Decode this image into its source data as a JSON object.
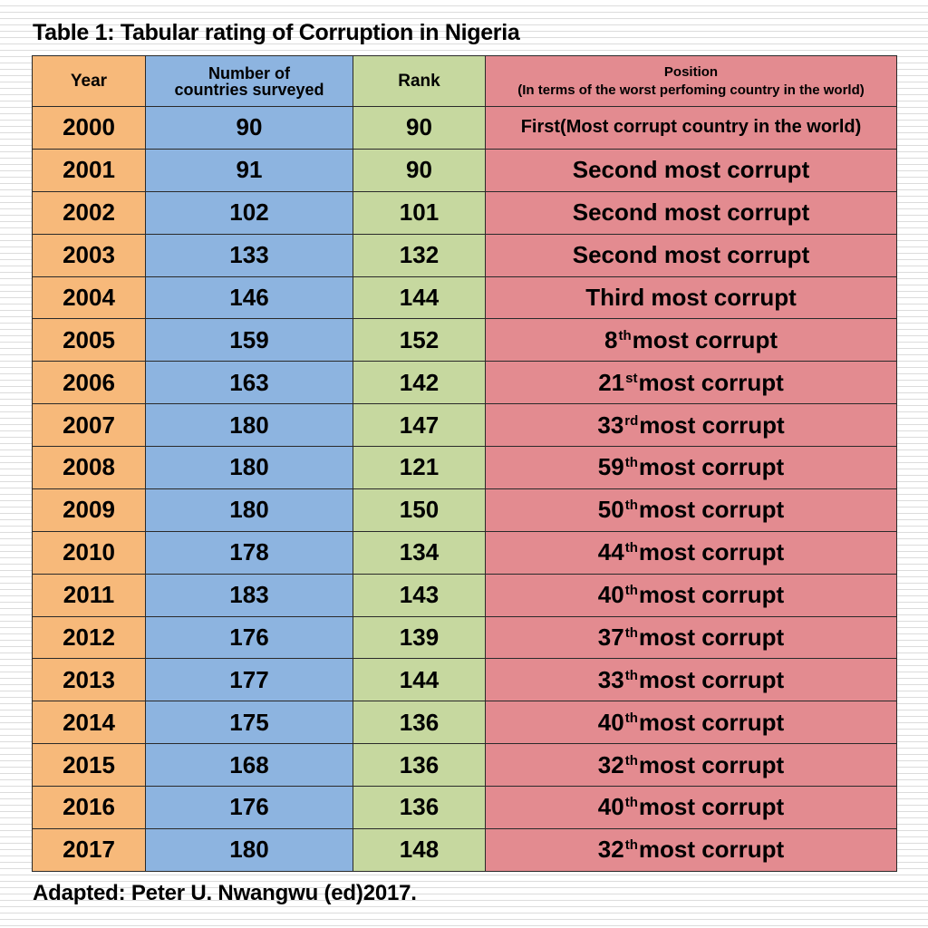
{
  "title": "Table 1: Tabular rating of Corruption in Nigeria",
  "headers": {
    "year": "Year",
    "countries_line1": "Number of",
    "countries_line2": "countries surveyed",
    "rank": "Rank",
    "position_line1": "Position",
    "position_line2": "(In terms of the worst perfoming country in the world)"
  },
  "colors": {
    "year": "#f7b97a",
    "countries": "#8db4e0",
    "rank": "#c6d89f",
    "position": "#e38b90"
  },
  "rows": [
    {
      "year": "2000",
      "countries": "90",
      "rank": "90",
      "position": "First(Most corrupt country in the world)",
      "suffix": "",
      "rest": ""
    },
    {
      "year": "2001",
      "countries": "91",
      "rank": "90",
      "position": "Second most corrupt",
      "suffix": "",
      "rest": ""
    },
    {
      "year": "2002",
      "countries": "102",
      "rank": "101",
      "position": "Second most corrupt",
      "suffix": "",
      "rest": ""
    },
    {
      "year": "2003",
      "countries": "133",
      "rank": "132",
      "position": "Second most corrupt",
      "suffix": "",
      "rest": ""
    },
    {
      "year": "2004",
      "countries": "146",
      "rank": "144",
      "position": "Third most corrupt",
      "suffix": "",
      "rest": ""
    },
    {
      "year": "2005",
      "countries": "159",
      "rank": "152",
      "position": "8",
      "suffix": "th",
      "rest": "most corrupt"
    },
    {
      "year": "2006",
      "countries": "163",
      "rank": "142",
      "position": "21",
      "suffix": "st",
      "rest": "most corrupt"
    },
    {
      "year": "2007",
      "countries": "180",
      "rank": "147",
      "position": "33",
      "suffix": "rd",
      "rest": "most corrupt"
    },
    {
      "year": "2008",
      "countries": "180",
      "rank": "121",
      "position": "59",
      "suffix": "th",
      "rest": "most corrupt"
    },
    {
      "year": "2009",
      "countries": "180",
      "rank": "150",
      "position": "50",
      "suffix": "th",
      "rest": "most corrupt"
    },
    {
      "year": "2010",
      "countries": "178",
      "rank": "134",
      "position": "44",
      "suffix": "th",
      "rest": "most corrupt"
    },
    {
      "year": "2011",
      "countries": "183",
      "rank": "143",
      "position": "40",
      "suffix": "th",
      "rest": "most corrupt"
    },
    {
      "year": "2012",
      "countries": "176",
      "rank": "139",
      "position": "37",
      "suffix": "th",
      "rest": "most corrupt"
    },
    {
      "year": "2013",
      "countries": "177",
      "rank": "144",
      "position": "33",
      "suffix": "th",
      "rest": "most corrupt"
    },
    {
      "year": "2014",
      "countries": "175",
      "rank": "136",
      "position": "40",
      "suffix": "th",
      "rest": "most corrupt"
    },
    {
      "year": "2015",
      "countries": "168",
      "rank": "136",
      "position": "32",
      "suffix": "th",
      "rest": "most corrupt"
    },
    {
      "year": "2016",
      "countries": "176",
      "rank": "136",
      "position": "40",
      "suffix": "th",
      "rest": "most corrupt"
    },
    {
      "year": "2017",
      "countries": "180",
      "rank": "148",
      "position": "32",
      "suffix": "th",
      "rest": "most corrupt"
    }
  ],
  "source": "Adapted: Peter U. Nwangwu (ed)2017."
}
